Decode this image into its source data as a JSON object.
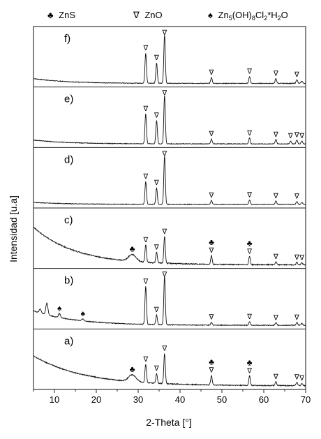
{
  "legend": [
    {
      "symbol": "♣",
      "label": "ZnS"
    },
    {
      "symbol": "∇",
      "label": "ZnO"
    },
    {
      "symbol": "♠",
      "label_main": "Zn",
      "sub1": "5",
      "label_mid": "(OH)",
      "sub2": "8",
      "label_mid2": "Cl",
      "sub3": "2",
      "label_end": "*H",
      "sub4": "2",
      "label_tail": "O"
    }
  ],
  "chart_data": {
    "type": "line",
    "xlabel": "2-Theta [°]",
    "ylabel": "Intensidad [u.a]",
    "xlim": [
      5,
      70
    ],
    "xticks": [
      10,
      20,
      30,
      40,
      50,
      60,
      70
    ],
    "markers": {
      "ZnO": "∇",
      "ZnS": "♣",
      "Zn5(OH)8Cl2*H2O": "♠"
    },
    "panels": [
      {
        "label": "f)",
        "baseline": 0.06,
        "background": {
          "start": 0.1,
          "end": 0.0,
          "decay": 8
        },
        "peaks": [
          [
            31.8,
            0.62
          ],
          [
            34.4,
            0.42
          ],
          [
            36.3,
            1.0
          ],
          [
            47.5,
            0.12
          ],
          [
            56.6,
            0.14
          ],
          [
            62.9,
            0.1
          ],
          [
            67.9,
            0.08
          ],
          [
            69.1,
            0.05
          ]
        ],
        "annotations": [
          {
            "x": 31.8,
            "symbols": [
              "∇"
            ]
          },
          {
            "x": 34.4,
            "symbols": [
              "∇"
            ]
          },
          {
            "x": 36.3,
            "symbols": [
              "∇"
            ]
          },
          {
            "x": 47.5,
            "symbols": [
              "∇"
            ]
          },
          {
            "x": 56.6,
            "symbols": [
              "∇"
            ]
          },
          {
            "x": 62.9,
            "symbols": [
              "∇"
            ]
          },
          {
            "x": 67.9,
            "symbols": [
              "∇"
            ]
          }
        ]
      },
      {
        "label": "e)",
        "baseline": 0.06,
        "background": {
          "start": 0.08,
          "end": 0.0,
          "decay": 8
        },
        "peaks": [
          [
            31.8,
            0.62
          ],
          [
            34.4,
            0.48
          ],
          [
            36.3,
            1.0
          ],
          [
            47.5,
            0.1
          ],
          [
            56.6,
            0.12
          ],
          [
            62.9,
            0.09
          ],
          [
            66.4,
            0.06
          ],
          [
            67.9,
            0.08
          ],
          [
            69.1,
            0.06
          ]
        ],
        "annotations": [
          {
            "x": 31.8,
            "symbols": [
              "∇"
            ]
          },
          {
            "x": 34.4,
            "symbols": [
              "∇"
            ]
          },
          {
            "x": 36.3,
            "symbols": [
              "∇"
            ]
          },
          {
            "x": 47.5,
            "symbols": [
              "∇"
            ]
          },
          {
            "x": 56.6,
            "symbols": [
              "∇"
            ]
          },
          {
            "x": 62.9,
            "symbols": [
              "∇"
            ]
          },
          {
            "x": 66.4,
            "symbols": [
              "∇"
            ]
          },
          {
            "x": 67.9,
            "symbols": [
              "∇"
            ]
          },
          {
            "x": 69.1,
            "symbols": [
              "∇"
            ]
          }
        ]
      },
      {
        "label": "d)",
        "baseline": 0.06,
        "background": {
          "start": 0.04,
          "end": 0.0,
          "decay": 8
        },
        "peaks": [
          [
            31.8,
            0.47
          ],
          [
            34.4,
            0.34
          ],
          [
            36.3,
            1.0
          ],
          [
            47.5,
            0.08
          ],
          [
            56.6,
            0.09
          ],
          [
            62.9,
            0.07
          ],
          [
            67.9,
            0.06
          ],
          [
            69.1,
            0.04
          ]
        ],
        "annotations": [
          {
            "x": 31.8,
            "symbols": [
              "∇"
            ]
          },
          {
            "x": 34.4,
            "symbols": [
              "∇"
            ]
          },
          {
            "x": 36.3,
            "symbols": [
              "∇"
            ]
          },
          {
            "x": 47.5,
            "symbols": [
              "∇"
            ]
          },
          {
            "x": 56.6,
            "symbols": [
              "∇"
            ]
          },
          {
            "x": 62.9,
            "symbols": [
              "∇"
            ]
          },
          {
            "x": 67.9,
            "symbols": [
              "∇"
            ]
          }
        ]
      },
      {
        "label": "c)",
        "baseline": 0.06,
        "background": {
          "start": 0.78,
          "end": 0.0,
          "decay": 10
        },
        "peaks": [
          [
            28.6,
            0.14
          ],
          [
            31.8,
            0.36
          ],
          [
            34.4,
            0.22
          ],
          [
            36.3,
            0.55
          ],
          [
            47.5,
            0.18
          ],
          [
            56.6,
            0.17
          ],
          [
            62.9,
            0.06
          ],
          [
            67.9,
            0.05
          ],
          [
            69.1,
            0.04
          ]
        ],
        "annotations": [
          {
            "x": 28.6,
            "symbols": [
              "♣"
            ]
          },
          {
            "x": 31.8,
            "symbols": [
              "∇"
            ]
          },
          {
            "x": 34.4,
            "symbols": [
              "∇"
            ]
          },
          {
            "x": 36.3,
            "symbols": [
              "∇"
            ]
          },
          {
            "x": 47.5,
            "symbols": [
              "∇",
              "♣"
            ]
          },
          {
            "x": 56.6,
            "symbols": [
              "∇",
              "♣"
            ]
          },
          {
            "x": 62.9,
            "symbols": [
              "∇"
            ]
          },
          {
            "x": 67.9,
            "symbols": [
              "∇"
            ]
          },
          {
            "x": 69.1,
            "symbols": [
              "∇"
            ]
          }
        ]
      },
      {
        "label": "b)",
        "baseline": 0.06,
        "background": {
          "start": 0.3,
          "end": 0.0,
          "decay": 10
        },
        "peaks": [
          [
            6.6,
            0.08
          ],
          [
            8.2,
            0.24
          ],
          [
            11.2,
            0.08
          ],
          [
            16.8,
            0.04
          ],
          [
            31.8,
            0.78
          ],
          [
            34.4,
            0.2
          ],
          [
            36.3,
            1.0
          ],
          [
            47.5,
            0.06
          ],
          [
            56.6,
            0.07
          ],
          [
            62.9,
            0.05
          ],
          [
            67.9,
            0.06
          ],
          [
            69.1,
            0.04
          ]
        ],
        "annotations": [
          {
            "x": 11.2,
            "symbols": [
              "♠"
            ]
          },
          {
            "x": 16.8,
            "symbols": [
              "♠"
            ]
          },
          {
            "x": 31.8,
            "symbols": [
              "∇"
            ]
          },
          {
            "x": 34.4,
            "symbols": [
              "∇"
            ]
          },
          {
            "x": 36.3,
            "symbols": [
              "∇"
            ]
          },
          {
            "x": 47.5,
            "symbols": [
              "∇"
            ]
          },
          {
            "x": 56.6,
            "symbols": [
              "∇"
            ]
          },
          {
            "x": 62.9,
            "symbols": [
              "∇"
            ]
          },
          {
            "x": 67.9,
            "symbols": [
              "∇"
            ]
          }
        ]
      },
      {
        "label": "a)",
        "baseline": 0.06,
        "background": {
          "start": 0.62,
          "end": 0.0,
          "decay": 12
        },
        "peaks": [
          [
            28.6,
            0.14
          ],
          [
            31.8,
            0.38
          ],
          [
            34.4,
            0.2
          ],
          [
            36.3,
            0.62
          ],
          [
            47.5,
            0.2
          ],
          [
            56.6,
            0.2
          ],
          [
            62.9,
            0.08
          ],
          [
            67.9,
            0.07
          ],
          [
            69.1,
            0.05
          ]
        ],
        "annotations": [
          {
            "x": 28.6,
            "symbols": [
              "♣"
            ]
          },
          {
            "x": 31.8,
            "symbols": [
              "∇"
            ]
          },
          {
            "x": 34.4,
            "symbols": [
              "∇"
            ]
          },
          {
            "x": 36.3,
            "symbols": [
              "∇"
            ]
          },
          {
            "x": 47.5,
            "symbols": [
              "∇",
              "♣"
            ]
          },
          {
            "x": 56.6,
            "symbols": [
              "∇",
              "♣"
            ]
          },
          {
            "x": 62.9,
            "symbols": [
              "∇"
            ]
          },
          {
            "x": 67.9,
            "symbols": [
              "∇"
            ]
          },
          {
            "x": 69.1,
            "symbols": [
              "∇"
            ]
          }
        ]
      }
    ]
  }
}
